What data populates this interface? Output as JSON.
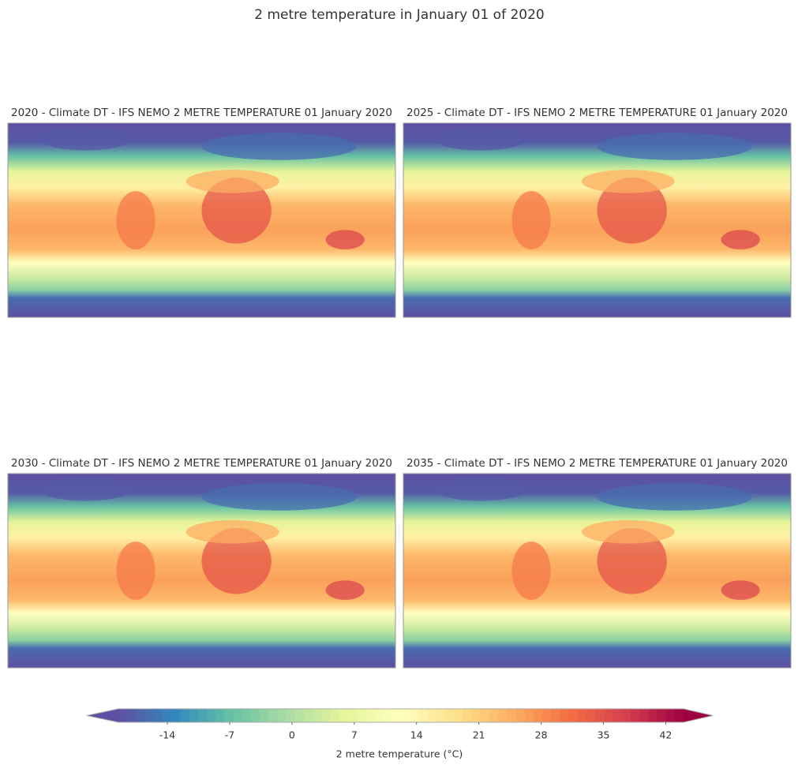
{
  "chart_data": {
    "type": "heatmap",
    "title": "2 metre temperature in January 01 of 2020",
    "panels": [
      {
        "title": "2020 - Climate DT - IFS NEMO 2 METRE TEMPERATURE 01 January 2020"
      },
      {
        "title": "2025 - Climate DT - IFS NEMO 2 METRE TEMPERATURE 01 January 2020"
      },
      {
        "title": "2030 - Climate DT - IFS NEMO 2 METRE TEMPERATURE 01 January 2020"
      },
      {
        "title": "2035 - Climate DT - IFS NEMO 2 METRE TEMPERATURE 01 January 2020"
      }
    ],
    "colormap": [
      "#5e4fa2",
      "#3288bd",
      "#66c2a5",
      "#abdda4",
      "#e6f598",
      "#ffffbf",
      "#fee08b",
      "#fdae61",
      "#f46d43",
      "#d53e4f",
      "#9e0142"
    ],
    "colorbar": {
      "label": "2 metre temperature (°C)",
      "xlim": [
        -19.5,
        44
      ],
      "xticks": [
        -14,
        -7,
        0,
        7,
        14,
        21,
        28,
        35,
        42
      ]
    }
  }
}
